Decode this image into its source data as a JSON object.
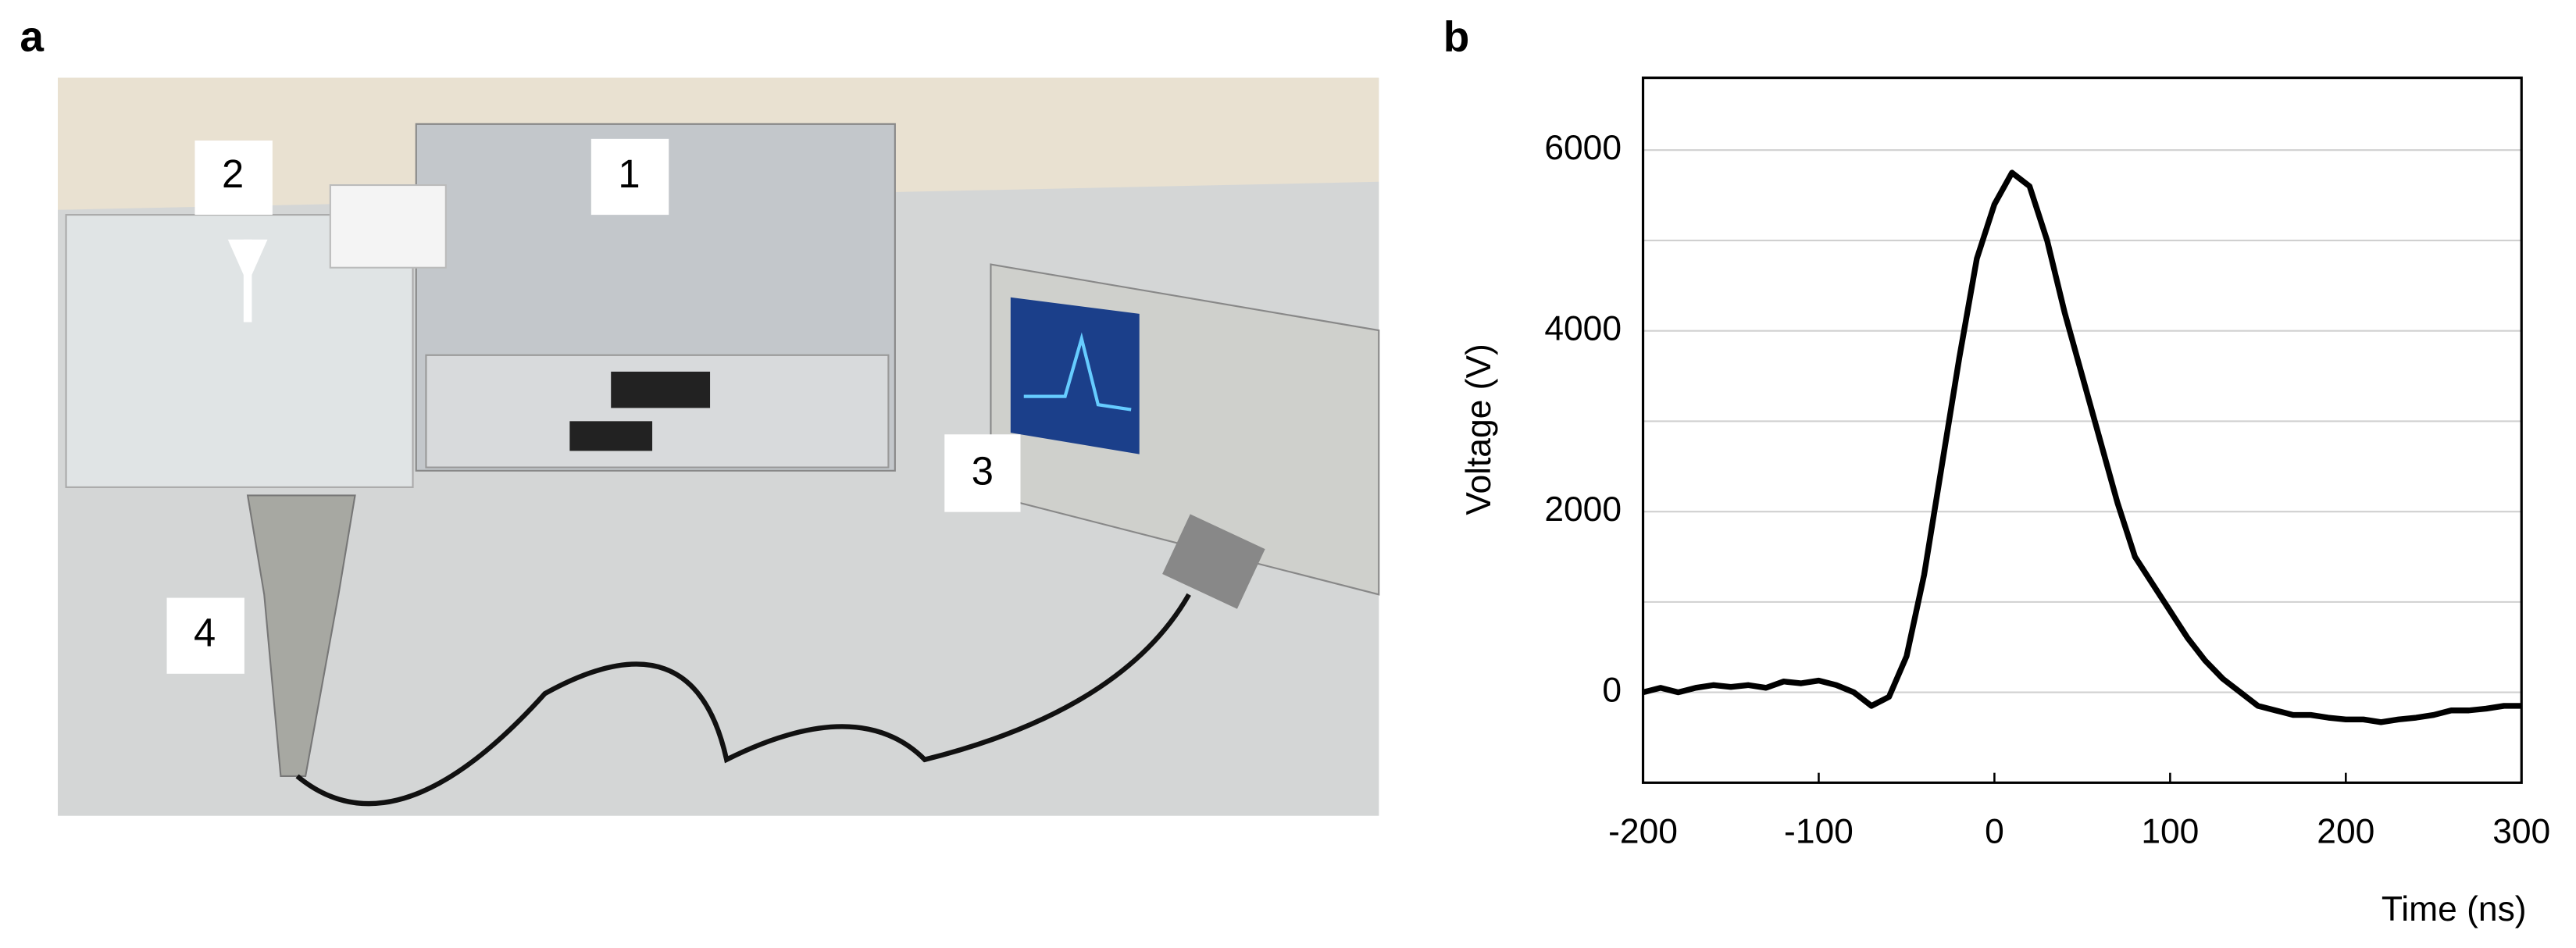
{
  "panel_labels": [
    "a",
    "b"
  ],
  "photo": {
    "callouts": [
      "1",
      "2",
      "3",
      "4"
    ]
  },
  "chart_data": {
    "type": "line",
    "xlabel": "Time (ns)",
    "ylabel": "Voltage (V)",
    "x": [
      -200,
      -190,
      -180,
      -170,
      -160,
      -150,
      -140,
      -130,
      -120,
      -110,
      -100,
      -90,
      -80,
      -70,
      -60,
      -50,
      -40,
      -30,
      -20,
      -10,
      0,
      10,
      20,
      30,
      40,
      50,
      60,
      70,
      80,
      90,
      100,
      110,
      120,
      130,
      140,
      150,
      160,
      170,
      180,
      190,
      200,
      210,
      220,
      230,
      240,
      250,
      260,
      270,
      280,
      290,
      300
    ],
    "series": [
      {
        "color": "#000000",
        "values": [
          0,
          50,
          0,
          50,
          80,
          60,
          80,
          50,
          120,
          100,
          130,
          80,
          0,
          -150,
          -50,
          400,
          1300,
          2500,
          3700,
          4800,
          5400,
          5750,
          5600,
          5000,
          4200,
          3500,
          2800,
          2100,
          1500,
          1200,
          900,
          600,
          350,
          150,
          0,
          -150,
          -200,
          -250,
          -250,
          -280,
          -300,
          -300,
          -330,
          -300,
          -280,
          -250,
          -200,
          -200,
          -180,
          -150,
          -150
        ]
      }
    ],
    "xlim": [
      -200,
      300
    ],
    "xticks": [
      -200,
      -100,
      0,
      100,
      200,
      300
    ],
    "ylim": [
      -1000,
      6800
    ],
    "yticks": [
      0,
      2000,
      4000,
      6000
    ],
    "ygrid": [
      0,
      1000,
      2000,
      3000,
      4000,
      5000,
      6000
    ],
    "grid": true
  }
}
